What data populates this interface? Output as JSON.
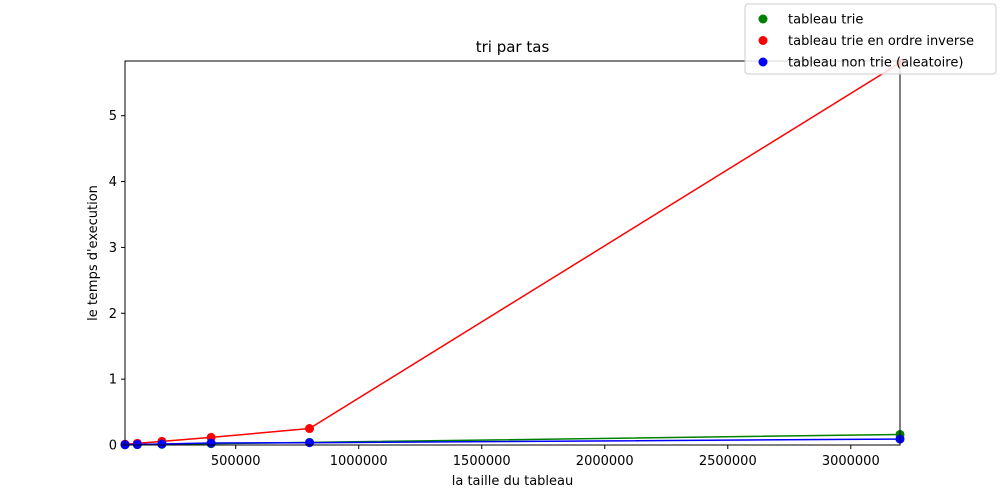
{
  "chart_data": {
    "type": "line",
    "title": "tri par tas",
    "xlabel": "la taille du tableau",
    "ylabel": "le temps d'execution",
    "xlim": [
      50000,
      3200000
    ],
    "ylim": [
      0,
      5.83
    ],
    "x_ticks": [
      500000,
      1000000,
      1500000,
      2000000,
      2500000,
      3000000
    ],
    "x_tick_labels": [
      "500000",
      "1000000",
      "1500000",
      "2000000",
      "2500000",
      "3000000"
    ],
    "y_ticks": [
      0,
      1,
      2,
      3,
      4,
      5
    ],
    "y_tick_labels": [
      "0",
      "1",
      "2",
      "3",
      "4",
      "5"
    ],
    "grid": false,
    "legend_position": "top-right",
    "series": [
      {
        "name": "tableau trie",
        "color": "#008000",
        "marker": "circle",
        "x": [
          50000,
          100000,
          200000,
          400000,
          800000,
          3200000
        ],
        "y": [
          0.003,
          0.005,
          0.01,
          0.02,
          0.04,
          0.16
        ]
      },
      {
        "name": "tableau trie en ordre inverse",
        "color": "#ff0000",
        "marker": "circle",
        "x": [
          50000,
          100000,
          200000,
          400000,
          800000,
          3200000
        ],
        "y": [
          0.012,
          0.025,
          0.055,
          0.115,
          0.25,
          5.8
        ]
      },
      {
        "name": "tableau non trie (aleatoire)",
        "color": "#0000ff",
        "marker": "circle",
        "x": [
          50000,
          100000,
          200000,
          400000,
          800000,
          3200000
        ],
        "y": [
          0.004,
          0.008,
          0.015,
          0.03,
          0.035,
          0.09
        ]
      }
    ]
  }
}
